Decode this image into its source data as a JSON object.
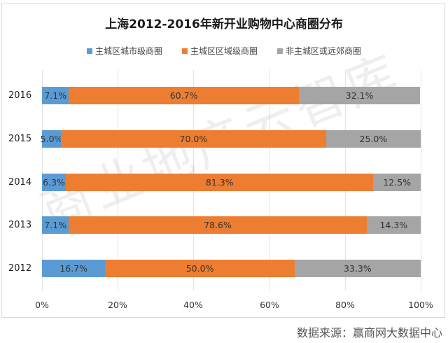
{
  "chart_data": {
    "type": "bar",
    "orientation": "horizontal",
    "stacked": "percent",
    "title": "上海2012-2016年新开业购物中心商圈分布",
    "categories": [
      "2016",
      "2015",
      "2014",
      "2013",
      "2012"
    ],
    "series": [
      {
        "name": "主城区城市级商圈",
        "color": "#5B9BD5",
        "values": [
          7.1,
          5.0,
          6.3,
          7.1,
          16.7
        ],
        "labels": [
          "7.1%",
          "5.0%",
          "6.3%",
          "7.1%",
          "16.7%"
        ]
      },
      {
        "name": "主城区区域级商圈",
        "color": "#ED7D31",
        "values": [
          60.7,
          70.0,
          81.3,
          78.6,
          50.0
        ],
        "labels": [
          "60.7%",
          "70.0%",
          "81.3%",
          "78.6%",
          "50.0%"
        ]
      },
      {
        "name": "非主城区或远郊商圈",
        "color": "#A5A5A5",
        "values": [
          32.1,
          25.0,
          12.5,
          14.3,
          33.3
        ],
        "labels": [
          "32.1%",
          "25.0%",
          "12.5%",
          "14.3%",
          "33.3%"
        ]
      }
    ],
    "xlabel": "",
    "ylabel": "",
    "xlim": [
      0,
      100
    ],
    "xticks": [
      "0%",
      "20%",
      "40%",
      "60%",
      "80%",
      "100%"
    ],
    "grid": true,
    "legend_position": "top",
    "source": "数据来源：赢商网大数据中心",
    "watermark": "商业地产云智库"
  }
}
